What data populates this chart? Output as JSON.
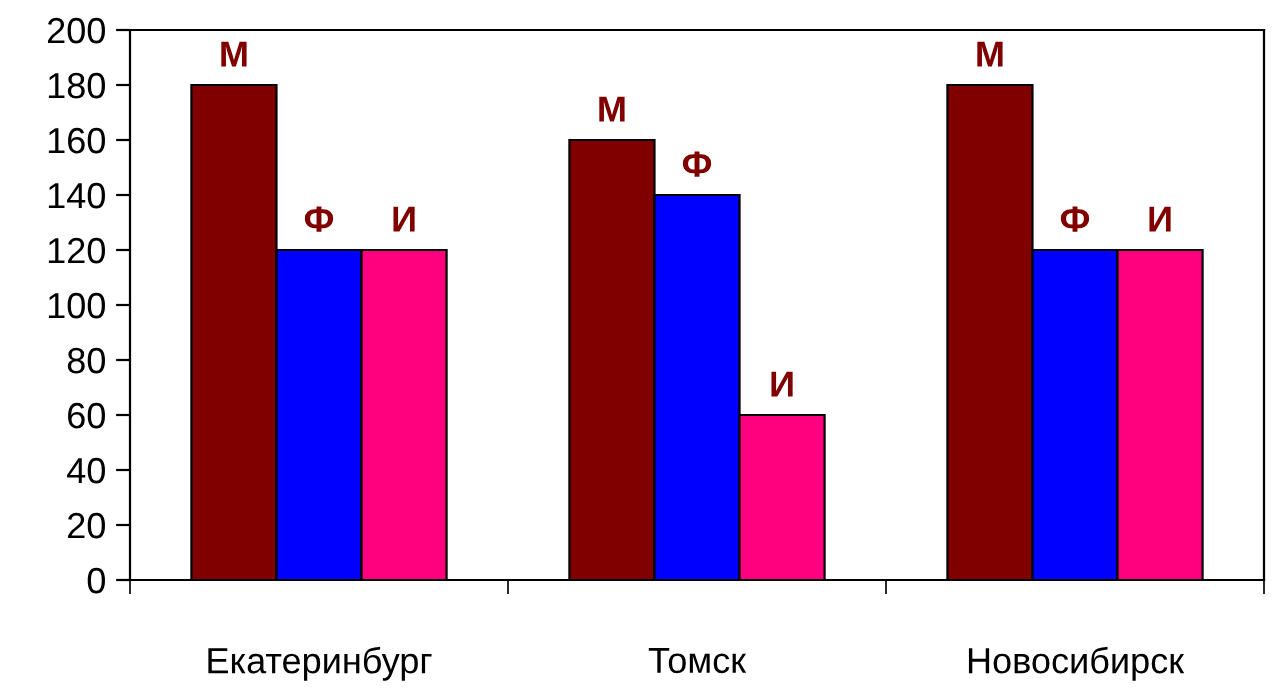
{
  "chart_data": {
    "type": "bar",
    "categories": [
      "Екатеринбург",
      "Томск",
      "Новосибирск"
    ],
    "series": [
      {
        "name": "М",
        "color": "#800000",
        "values": [
          180,
          160,
          180
        ]
      },
      {
        "name": "Ф",
        "color": "#0000ff",
        "values": [
          120,
          140,
          120
        ]
      },
      {
        "name": "И",
        "color": "#ff007f",
        "values": [
          120,
          60,
          120
        ]
      }
    ],
    "ylim": [
      0,
      200
    ],
    "yticks": [
      0,
      20,
      40,
      60,
      80,
      100,
      120,
      140,
      160,
      180,
      200
    ],
    "grid": false,
    "legend": false
  }
}
